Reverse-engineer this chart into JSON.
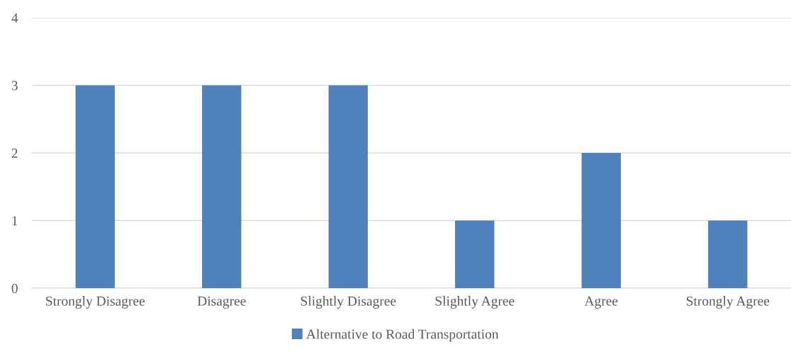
{
  "chart_data": {
    "type": "bar",
    "categories": [
      "Strongly Disagree",
      "Disagree",
      "Slightly Disagree",
      "Slightly Agree",
      "Agree",
      "Strongly Agree"
    ],
    "series": [
      {
        "name": "Alternative to Road Transportation",
        "color": "#4f81bd",
        "values": [
          3,
          3,
          3,
          1,
          2,
          1
        ]
      }
    ],
    "ylim": [
      0,
      4
    ],
    "yticks": [
      0,
      1,
      2,
      3,
      4
    ],
    "grid": "y",
    "legend": "bottom"
  }
}
